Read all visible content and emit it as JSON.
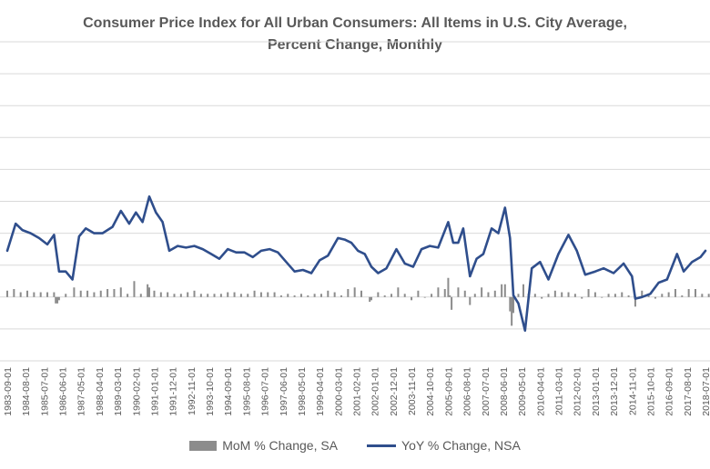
{
  "chart_data": {
    "type": "line",
    "title": [
      "Consumer Price Index for All Urban Consumers: All Items in U.S. City Average,",
      "Percent Change, Monthly"
    ],
    "xlabel": "",
    "ylabel": "",
    "x_tick_labels": [
      "1983-09-01",
      "1984-08-01",
      "1985-07-01",
      "1986-06-01",
      "1987-05-01",
      "1988-04-01",
      "1989-03-01",
      "1990-02-01",
      "1991-01-01",
      "1991-12-01",
      "1992-11-01",
      "1993-10-01",
      "1994-09-01",
      "1995-08-01",
      "1996-07-01",
      "1997-06-01",
      "1998-05-01",
      "1999-04-01",
      "2000-03-01",
      "2001-02-01",
      "2002-01-01",
      "2002-12-01",
      "2003-11-01",
      "2004-10-01",
      "2005-09-01",
      "2006-08-01",
      "2007-07-01",
      "2008-06-01",
      "2009-05-01",
      "2010-04-01",
      "2011-03-01",
      "2012-02-01",
      "2013-01-01",
      "2013-12-01",
      "2014-11-01",
      "2015-10-01",
      "2016-09-01",
      "2017-08-01",
      "2018-07-01"
    ],
    "ylim": [
      -4,
      16
    ],
    "y_gridlines": [
      -4,
      -2,
      0,
      2,
      4,
      6,
      8,
      10,
      12,
      14,
      16
    ],
    "grid": true,
    "legend_position": "bottom",
    "colors": {
      "mom": "#8c8c8c",
      "yoy": "#2f4e8c",
      "grid": "#d9d9d9"
    },
    "series": [
      {
        "name": "MoM % Change, SA",
        "kind": "bar",
        "x": [
          "1983-09-01",
          "1984-01-01",
          "1984-05-01",
          "1984-09-01",
          "1985-01-01",
          "1985-05-01",
          "1985-09-01",
          "1986-01-01",
          "1986-02-01",
          "1986-03-01",
          "1986-04-01",
          "1986-08-01",
          "1987-01-01",
          "1987-05-01",
          "1987-09-01",
          "1988-01-01",
          "1988-05-01",
          "1988-09-01",
          "1989-01-01",
          "1989-05-01",
          "1989-09-01",
          "1990-01-01",
          "1990-05-01",
          "1990-09-01",
          "1990-10-01",
          "1991-01-01",
          "1991-05-01",
          "1991-09-01",
          "1992-01-01",
          "1992-05-01",
          "1992-09-01",
          "1993-01-01",
          "1993-05-01",
          "1993-09-01",
          "1994-01-01",
          "1994-05-01",
          "1994-09-01",
          "1995-01-01",
          "1995-05-01",
          "1995-09-01",
          "1996-01-01",
          "1996-05-01",
          "1996-09-01",
          "1997-01-01",
          "1997-05-01",
          "1997-09-01",
          "1998-01-01",
          "1998-05-01",
          "1998-09-01",
          "1999-01-01",
          "1999-05-01",
          "1999-09-01",
          "2000-01-01",
          "2000-05-01",
          "2000-09-01",
          "2001-01-01",
          "2001-05-01",
          "2001-10-01",
          "2001-11-01",
          "2002-03-01",
          "2002-07-01",
          "2002-11-01",
          "2003-03-01",
          "2003-07-01",
          "2003-11-01",
          "2004-03-01",
          "2004-07-01",
          "2004-11-01",
          "2005-03-01",
          "2005-07-01",
          "2005-09-01",
          "2005-10-01",
          "2005-11-01",
          "2006-03-01",
          "2006-07-01",
          "2006-10-01",
          "2007-01-01",
          "2007-05-01",
          "2007-09-01",
          "2008-01-01",
          "2008-05-01",
          "2008-07-01",
          "2008-10-01",
          "2008-11-01",
          "2008-12-01",
          "2009-03-01",
          "2009-06-01",
          "2009-09-01",
          "2010-01-01",
          "2010-05-01",
          "2010-09-01",
          "2011-01-01",
          "2011-05-01",
          "2011-09-01",
          "2012-01-01",
          "2012-05-01",
          "2012-09-01",
          "2013-01-01",
          "2013-05-01",
          "2013-09-01",
          "2014-01-01",
          "2014-05-01",
          "2014-09-01",
          "2015-01-01",
          "2015-05-01",
          "2015-09-01",
          "2016-01-01",
          "2016-05-01",
          "2016-09-01",
          "2017-01-01",
          "2017-05-01",
          "2017-09-01",
          "2018-01-01",
          "2018-05-01",
          "2018-09-01"
        ],
        "values": [
          0.4,
          0.5,
          0.3,
          0.4,
          0.3,
          0.3,
          0.3,
          0.3,
          -0.4,
          -0.4,
          -0.2,
          0.2,
          0.6,
          0.4,
          0.4,
          0.3,
          0.4,
          0.5,
          0.5,
          0.6,
          0.2,
          1.0,
          0.2,
          0.8,
          0.6,
          0.4,
          0.3,
          0.3,
          0.2,
          0.2,
          0.3,
          0.4,
          0.2,
          0.2,
          0.2,
          0.2,
          0.3,
          0.3,
          0.2,
          0.2,
          0.4,
          0.3,
          0.3,
          0.3,
          0.1,
          0.2,
          0.1,
          0.2,
          0.1,
          0.2,
          0.2,
          0.4,
          0.3,
          0.1,
          0.5,
          0.6,
          0.4,
          -0.3,
          -0.2,
          0.3,
          0.1,
          0.2,
          0.6,
          0.2,
          -0.2,
          0.4,
          0.0,
          0.2,
          0.6,
          0.5,
          1.2,
          0.1,
          -0.8,
          0.6,
          0.4,
          -0.5,
          0.2,
          0.6,
          0.3,
          0.4,
          0.8,
          0.8,
          -0.9,
          -1.8,
          -1.0,
          0.2,
          0.8,
          0.2,
          0.2,
          -0.1,
          0.2,
          0.4,
          0.3,
          0.3,
          0.2,
          -0.1,
          0.5,
          0.3,
          0.0,
          0.2,
          0.2,
          0.3,
          0.1,
          -0.6,
          0.4,
          0.1,
          -0.1,
          0.2,
          0.3,
          0.5,
          0.1,
          0.5,
          0.5,
          0.2,
          0.2
        ]
      },
      {
        "name": "YoY % Change, NSA",
        "kind": "line",
        "x": [
          "1983-09-01",
          "1984-02-01",
          "1984-06-01",
          "1984-11-01",
          "1985-04-01",
          "1985-09-01",
          "1986-01-01",
          "1986-04-01",
          "1986-08-01",
          "1986-12-01",
          "1987-04-01",
          "1987-08-01",
          "1988-01-01",
          "1988-06-01",
          "1988-12-01",
          "1989-05-01",
          "1989-10-01",
          "1990-02-01",
          "1990-06-01",
          "1990-10-01",
          "1991-02-01",
          "1991-06-01",
          "1991-10-01",
          "1992-03-01",
          "1992-08-01",
          "1993-01-01",
          "1993-06-01",
          "1993-11-01",
          "1994-04-01",
          "1994-09-01",
          "1995-02-01",
          "1995-07-01",
          "1995-12-01",
          "1996-05-01",
          "1996-10-01",
          "1997-03-01",
          "1997-08-01",
          "1998-01-01",
          "1998-06-01",
          "1998-11-01",
          "1999-04-01",
          "1999-09-01",
          "2000-03-01",
          "2000-07-01",
          "2000-11-01",
          "2001-03-01",
          "2001-07-01",
          "2001-11-01",
          "2002-03-01",
          "2002-08-01",
          "2003-02-01",
          "2003-07-01",
          "2003-12-01",
          "2004-05-01",
          "2004-10-01",
          "2005-03-01",
          "2005-09-01",
          "2005-12-01",
          "2006-03-01",
          "2006-06-01",
          "2006-10-01",
          "2007-02-01",
          "2007-06-01",
          "2007-11-01",
          "2008-03-01",
          "2008-07-01",
          "2008-10-01",
          "2008-12-01",
          "2009-03-01",
          "2009-07-01",
          "2009-11-01",
          "2010-04-01",
          "2010-09-01",
          "2011-03-01",
          "2011-09-01",
          "2012-02-01",
          "2012-07-01",
          "2013-01-01",
          "2013-06-01",
          "2013-12-01",
          "2014-06-01",
          "2014-11-01",
          "2015-01-01",
          "2015-05-01",
          "2015-10-01",
          "2016-03-01",
          "2016-08-01",
          "2017-02-01",
          "2017-06-01",
          "2017-11-01",
          "2018-04-01",
          "2018-07-01"
        ],
        "values": [
          2.9,
          4.6,
          4.2,
          4.0,
          3.7,
          3.3,
          3.9,
          1.6,
          1.6,
          1.1,
          3.8,
          4.3,
          4.0,
          4.0,
          4.4,
          5.4,
          4.6,
          5.3,
          4.7,
          6.3,
          5.3,
          4.7,
          2.9,
          3.2,
          3.1,
          3.2,
          3.0,
          2.7,
          2.4,
          3.0,
          2.8,
          2.8,
          2.5,
          2.9,
          3.0,
          2.8,
          2.2,
          1.6,
          1.7,
          1.5,
          2.3,
          2.6,
          3.7,
          3.6,
          3.4,
          2.9,
          2.7,
          1.9,
          1.5,
          1.8,
          3.0,
          2.1,
          1.9,
          3.0,
          3.2,
          3.1,
          4.7,
          3.4,
          3.4,
          4.3,
          1.3,
          2.4,
          2.7,
          4.3,
          4.0,
          5.6,
          3.7,
          0.1,
          -0.4,
          -2.1,
          1.8,
          2.2,
          1.1,
          2.7,
          3.9,
          2.9,
          1.4,
          1.6,
          1.8,
          1.5,
          2.1,
          1.3,
          -0.1,
          0.0,
          0.2,
          0.9,
          1.1,
          2.7,
          1.6,
          2.2,
          2.5,
          2.9
        ]
      }
    ]
  }
}
